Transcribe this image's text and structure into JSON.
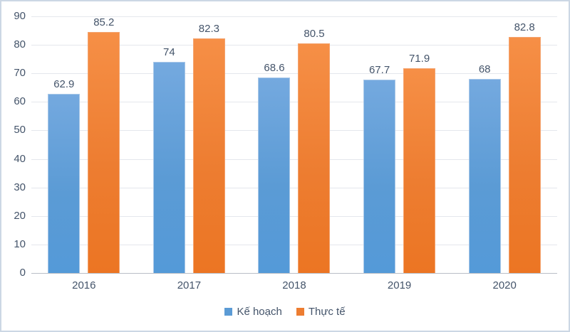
{
  "colors": {
    "plan": "#5b9bd5",
    "actual": "#ed7d31",
    "text": "#44546a",
    "gridline": "#e4e7ec",
    "axis_line": "#b9bec6",
    "frame_border": "#ccd7e4"
  },
  "chart_data": {
    "type": "bar",
    "title": "",
    "xlabel": "",
    "ylabel": "",
    "categories": [
      "2016",
      "2017",
      "2018",
      "2019",
      "2020"
    ],
    "series": [
      {
        "name": "Kế hoạch",
        "color": "#5b9bd5",
        "values": [
          62.9,
          74,
          68.6,
          67.7,
          68
        ]
      },
      {
        "name": "Thực tế",
        "color": "#ed7d31",
        "values": [
          85.2,
          82.3,
          80.5,
          71.9,
          82.8
        ]
      }
    ],
    "data_labels": true,
    "ylim": [
      0,
      90
    ],
    "yticks": [
      0,
      10,
      20,
      30,
      40,
      50,
      60,
      70,
      80,
      90
    ],
    "grid": true,
    "legend_position": "bottom"
  }
}
